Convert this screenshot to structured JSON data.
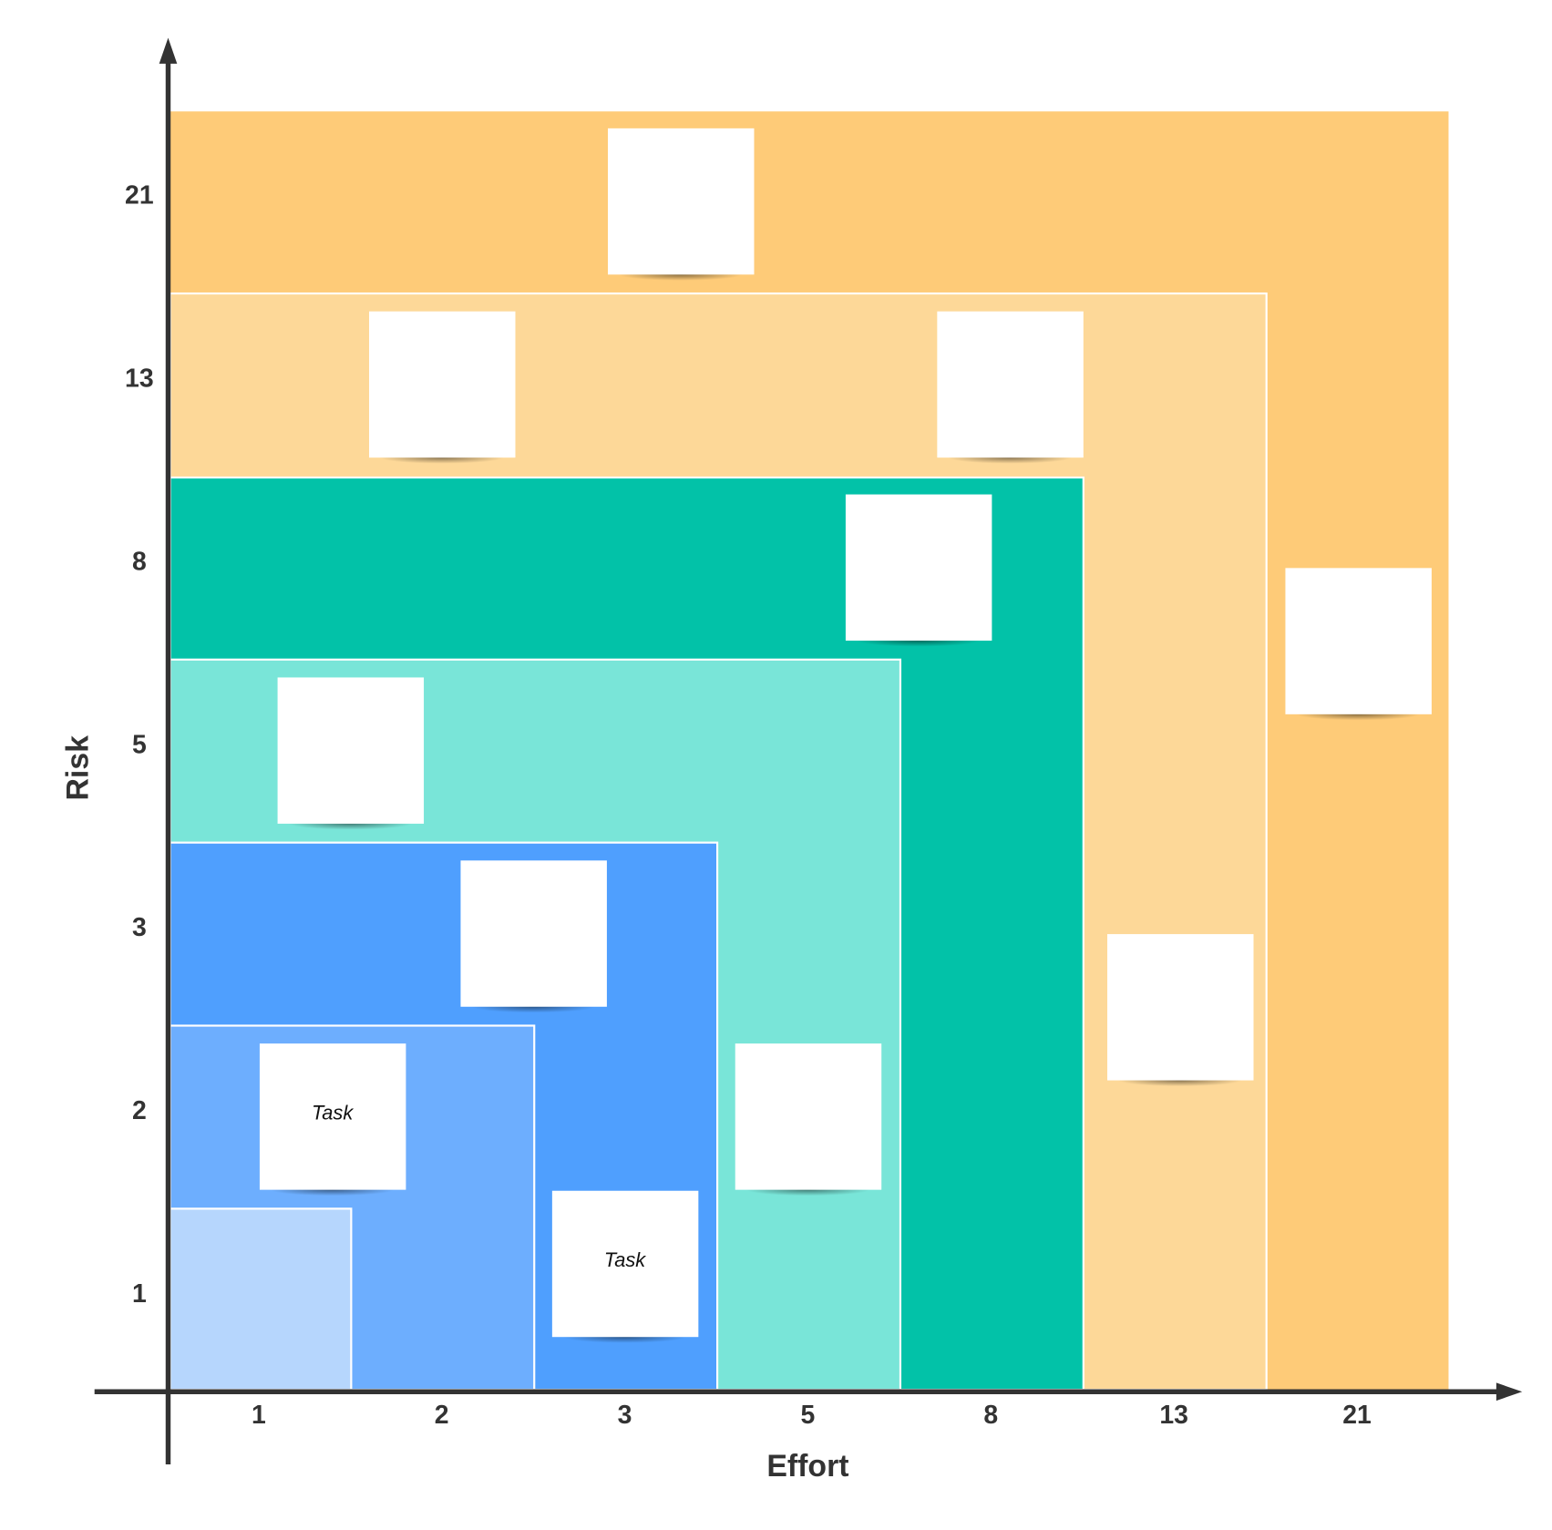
{
  "axes": {
    "x": {
      "label": "Effort",
      "ticks": [
        1,
        2,
        3,
        5,
        8,
        13,
        21
      ]
    },
    "y": {
      "label": "Risk",
      "ticks": [
        1,
        2,
        3,
        5,
        8,
        13,
        21
      ]
    }
  },
  "cards": [
    {
      "label": "Task"
    },
    {
      "label": "Task"
    }
  ]
}
